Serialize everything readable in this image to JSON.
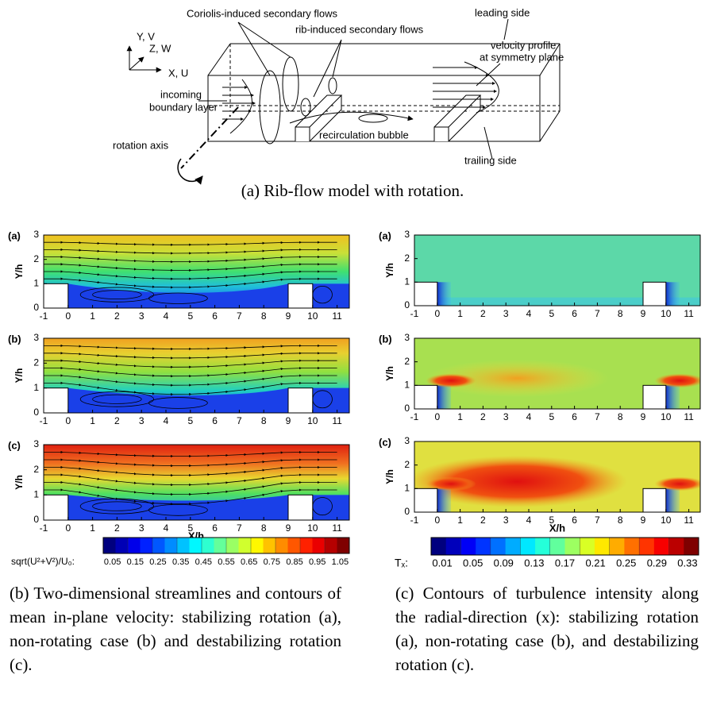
{
  "diagram": {
    "labels": [
      "Coriolis-induced secondary flows",
      "rib-induced secondary flows",
      "leading side",
      "velocity profile",
      "at symmetry plane",
      "incoming",
      "boundary layer",
      "rotation axis",
      "recirculation bubble",
      "trailing side",
      "Y, V",
      "Z, W",
      "X, U"
    ],
    "caption": "(a) Rib-flow model with rotation."
  },
  "axes": {
    "x_ticks": [
      "-1",
      "0",
      "1",
      "2",
      "3",
      "4",
      "5",
      "6",
      "7",
      "8",
      "9",
      "10",
      "11"
    ],
    "y_ticks": [
      "0",
      "1",
      "2",
      "3"
    ],
    "y_title": "Y/h",
    "x_title": "X/h"
  },
  "left": {
    "panels": [
      "(a)",
      "(b)",
      "(c)"
    ],
    "colorbar_label": "sqrt(U²+V²)/U₀:",
    "colorbar_ticks": [
      "0.05",
      "0.15",
      "0.25",
      "0.35",
      "0.45",
      "0.55",
      "0.65",
      "0.75",
      "0.85",
      "0.95",
      "1.05"
    ],
    "caption": "(b) Two-dimensional streamlines and contours of mean in-plane velocity: stabilizing rotation (a), non-rotating case (b) and destabilizing rotation (c)."
  },
  "right": {
    "panels": [
      "(a)",
      "(b)",
      "(c)"
    ],
    "colorbar_label": "Tₓ:",
    "colorbar_ticks": [
      "0.01",
      "0.05",
      "0.09",
      "0.13",
      "0.17",
      "0.21",
      "0.25",
      "0.29",
      "0.33"
    ],
    "caption": "(c) Contours of turbulence intensity along the radial-direction (x): stabilizing rotation (a), non-rotating case (b), and destabilizing rotation (c)."
  }
}
